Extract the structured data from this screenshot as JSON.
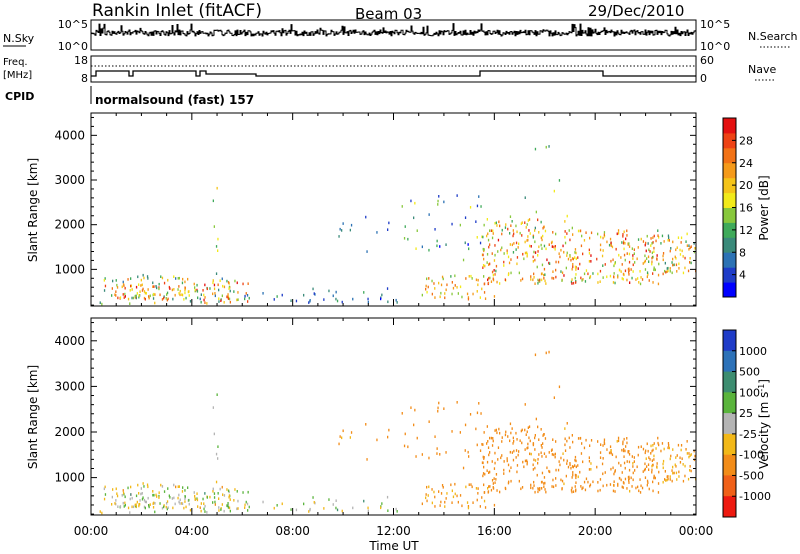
{
  "header": {
    "station": "Rankin Inlet (fitACF)",
    "beam": "Beam 03",
    "date": "29/Dec/2010"
  },
  "top_panels": {
    "nsky_label": "N.Sky",
    "nsky_ticks": [
      "10^5",
      "10^0"
    ],
    "nsearch_ticks": [
      "10^5",
      "10^0"
    ],
    "nsearch_label": "N.Search",
    "freq_label_1": "Freq.",
    "freq_label_2": "[MHz]",
    "freq_ticks": [
      "18",
      "8"
    ],
    "nave_ticks": [
      "60",
      "0"
    ],
    "nave_label": "Nave",
    "cpid_label": "CPID",
    "cpid_text": "normalsound (fast) 157"
  },
  "chart_data": [
    {
      "type": "heatmap",
      "name": "power",
      "ylabel": "Slant Range [km]",
      "xlabel": "Time UT",
      "x_ticks": [
        "00:00",
        "04:00",
        "08:00",
        "12:00",
        "16:00",
        "20:00",
        "00:00"
      ],
      "x_range_hours": [
        0,
        24
      ],
      "ylim": [
        180,
        4500
      ],
      "y_ticks": [
        1000,
        2000,
        3000,
        4000
      ],
      "colorbar": {
        "label": "Power [dB]",
        "range": [
          0,
          32
        ],
        "ticks": [
          4,
          8,
          12,
          16,
          20,
          24,
          28
        ],
        "colors": [
          "#0000ff",
          "#1e3cc8",
          "#2c72b4",
          "#3a8a7a",
          "#3faa5a",
          "#88c83c",
          "#f2ea1a",
          "#f5c419",
          "#f59a1a",
          "#f27216",
          "#ee4214",
          "#e41010"
        ]
      }
    },
    {
      "type": "heatmap",
      "name": "velocity",
      "ylabel": "Slant Range [km]",
      "xlabel": "Time UT",
      "x_ticks": [
        "00:00",
        "04:00",
        "08:00",
        "12:00",
        "16:00",
        "20:00",
        "00:00"
      ],
      "x_range_hours": [
        0,
        24
      ],
      "ylim": [
        180,
        4500
      ],
      "y_ticks": [
        1000,
        2000,
        3000,
        4000
      ],
      "colorbar": {
        "label": "Velocity [m s^-1]",
        "ticks": [
          "1000",
          "500",
          "100",
          "25",
          "-25",
          "-100",
          "-500",
          "-1000"
        ],
        "colors": [
          "#1f3cc8",
          "#2d72b8",
          "#3d8d70",
          "#5ab43c",
          "#b4b4b4",
          "#f2b818",
          "#f28c18",
          "#f06018",
          "#ee1a10"
        ]
      }
    }
  ]
}
